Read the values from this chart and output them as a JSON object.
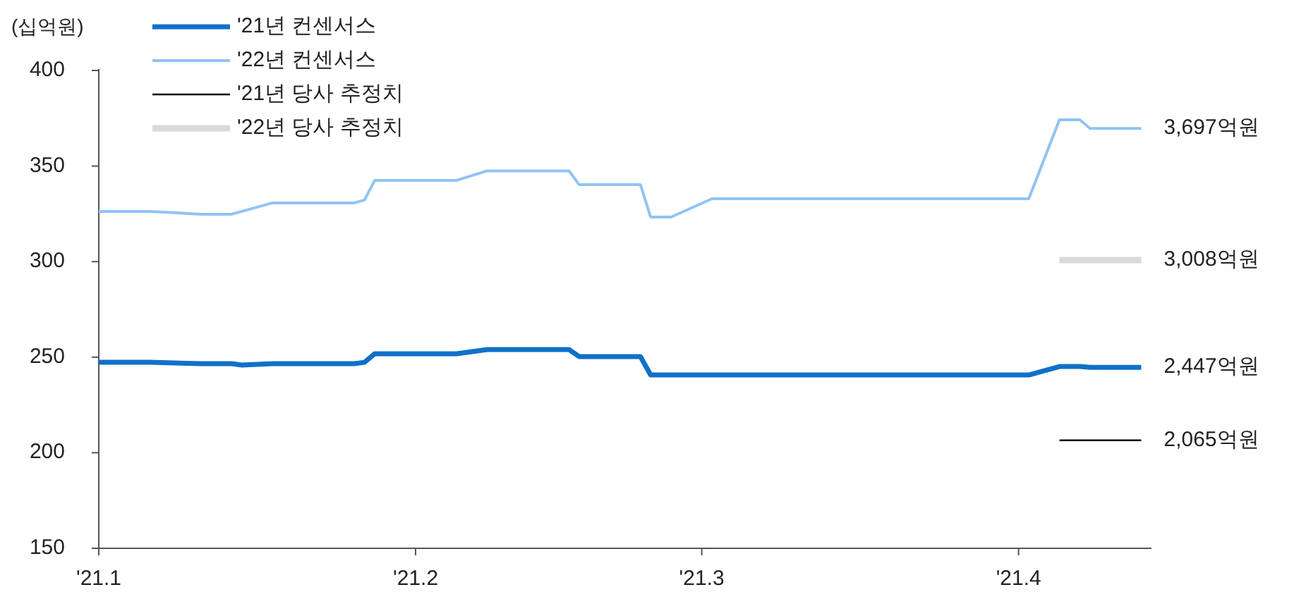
{
  "chart_data": {
    "type": "line",
    "ylabel": "(십억원)",
    "xlim": [
      "2021-01-01",
      "2021-04-14"
    ],
    "xticks": [
      {
        "value": "2021-01-01",
        "label": "'21.1"
      },
      {
        "value": "2021-02-01",
        "label": "'21.2"
      },
      {
        "value": "2021-03-01",
        "label": "'21.3"
      },
      {
        "value": "2021-04-01",
        "label": "'21.4"
      }
    ],
    "ylim": [
      150,
      400
    ],
    "yticks": [
      150,
      200,
      250,
      300,
      350,
      400
    ],
    "grid": false,
    "legend": "top left",
    "series": [
      {
        "name": "'21년 컨센서스",
        "color": "#1070c8",
        "x": [
          "2021-01-01",
          "2021-01-06",
          "2021-01-11",
          "2021-01-14",
          "2021-01-15",
          "2021-01-18",
          "2021-01-26",
          "2021-01-27",
          "2021-01-28",
          "2021-02-05",
          "2021-02-08",
          "2021-02-16",
          "2021-02-17",
          "2021-02-23",
          "2021-02-24",
          "2021-04-02",
          "2021-04-05",
          "2021-04-07",
          "2021-04-08",
          "2021-04-13"
        ],
        "values": [
          247.3,
          247.3,
          246.6,
          246.6,
          245.9,
          246.6,
          246.6,
          247.3,
          251.8,
          251.8,
          254,
          254,
          250.3,
          250.3,
          240.7,
          240.7,
          245.1,
          245.1,
          244.7,
          244.7
        ]
      },
      {
        "name": "'22년 컨센서스",
        "color": "#90c4f4",
        "x": [
          "2021-01-01",
          "2021-01-06",
          "2021-01-11",
          "2021-01-14",
          "2021-01-18",
          "2021-01-26",
          "2021-01-27",
          "2021-01-28",
          "2021-02-05",
          "2021-02-08",
          "2021-02-16",
          "2021-02-17",
          "2021-02-23",
          "2021-02-24",
          "2021-02-26",
          "2021-03-02",
          "2021-04-02",
          "2021-04-05",
          "2021-04-07",
          "2021-04-08",
          "2021-04-13"
        ],
        "values": [
          326.3,
          326.3,
          324.8,
          324.8,
          330.7,
          330.7,
          332.2,
          342.5,
          342.5,
          347.5,
          347.5,
          340.3,
          340.3,
          323.3,
          323.3,
          332.9,
          332.9,
          374.2,
          374.2,
          369.7,
          369.7
        ]
      },
      {
        "name": "'21년 당사 추정치",
        "color": "#000000",
        "x": [
          "2021-04-05",
          "2021-04-13"
        ],
        "values": [
          206.5,
          206.5
        ]
      },
      {
        "name": "'22년 당사 추정치",
        "color": "#d9d9d9",
        "x": [
          "2021-04-05",
          "2021-04-13"
        ],
        "values": [
          300.8,
          300.8
        ]
      }
    ],
    "annotations": [
      {
        "text": "3,697억원",
        "x": "2021-04-13",
        "y": 369.7
      },
      {
        "text": "3,008억원",
        "x": "2021-04-13",
        "y": 300.8
      },
      {
        "text": "2,447억원",
        "x": "2021-04-13",
        "y": 244.7
      },
      {
        "text": "2,065억원",
        "x": "2021-04-13",
        "y": 206.5
      }
    ]
  }
}
